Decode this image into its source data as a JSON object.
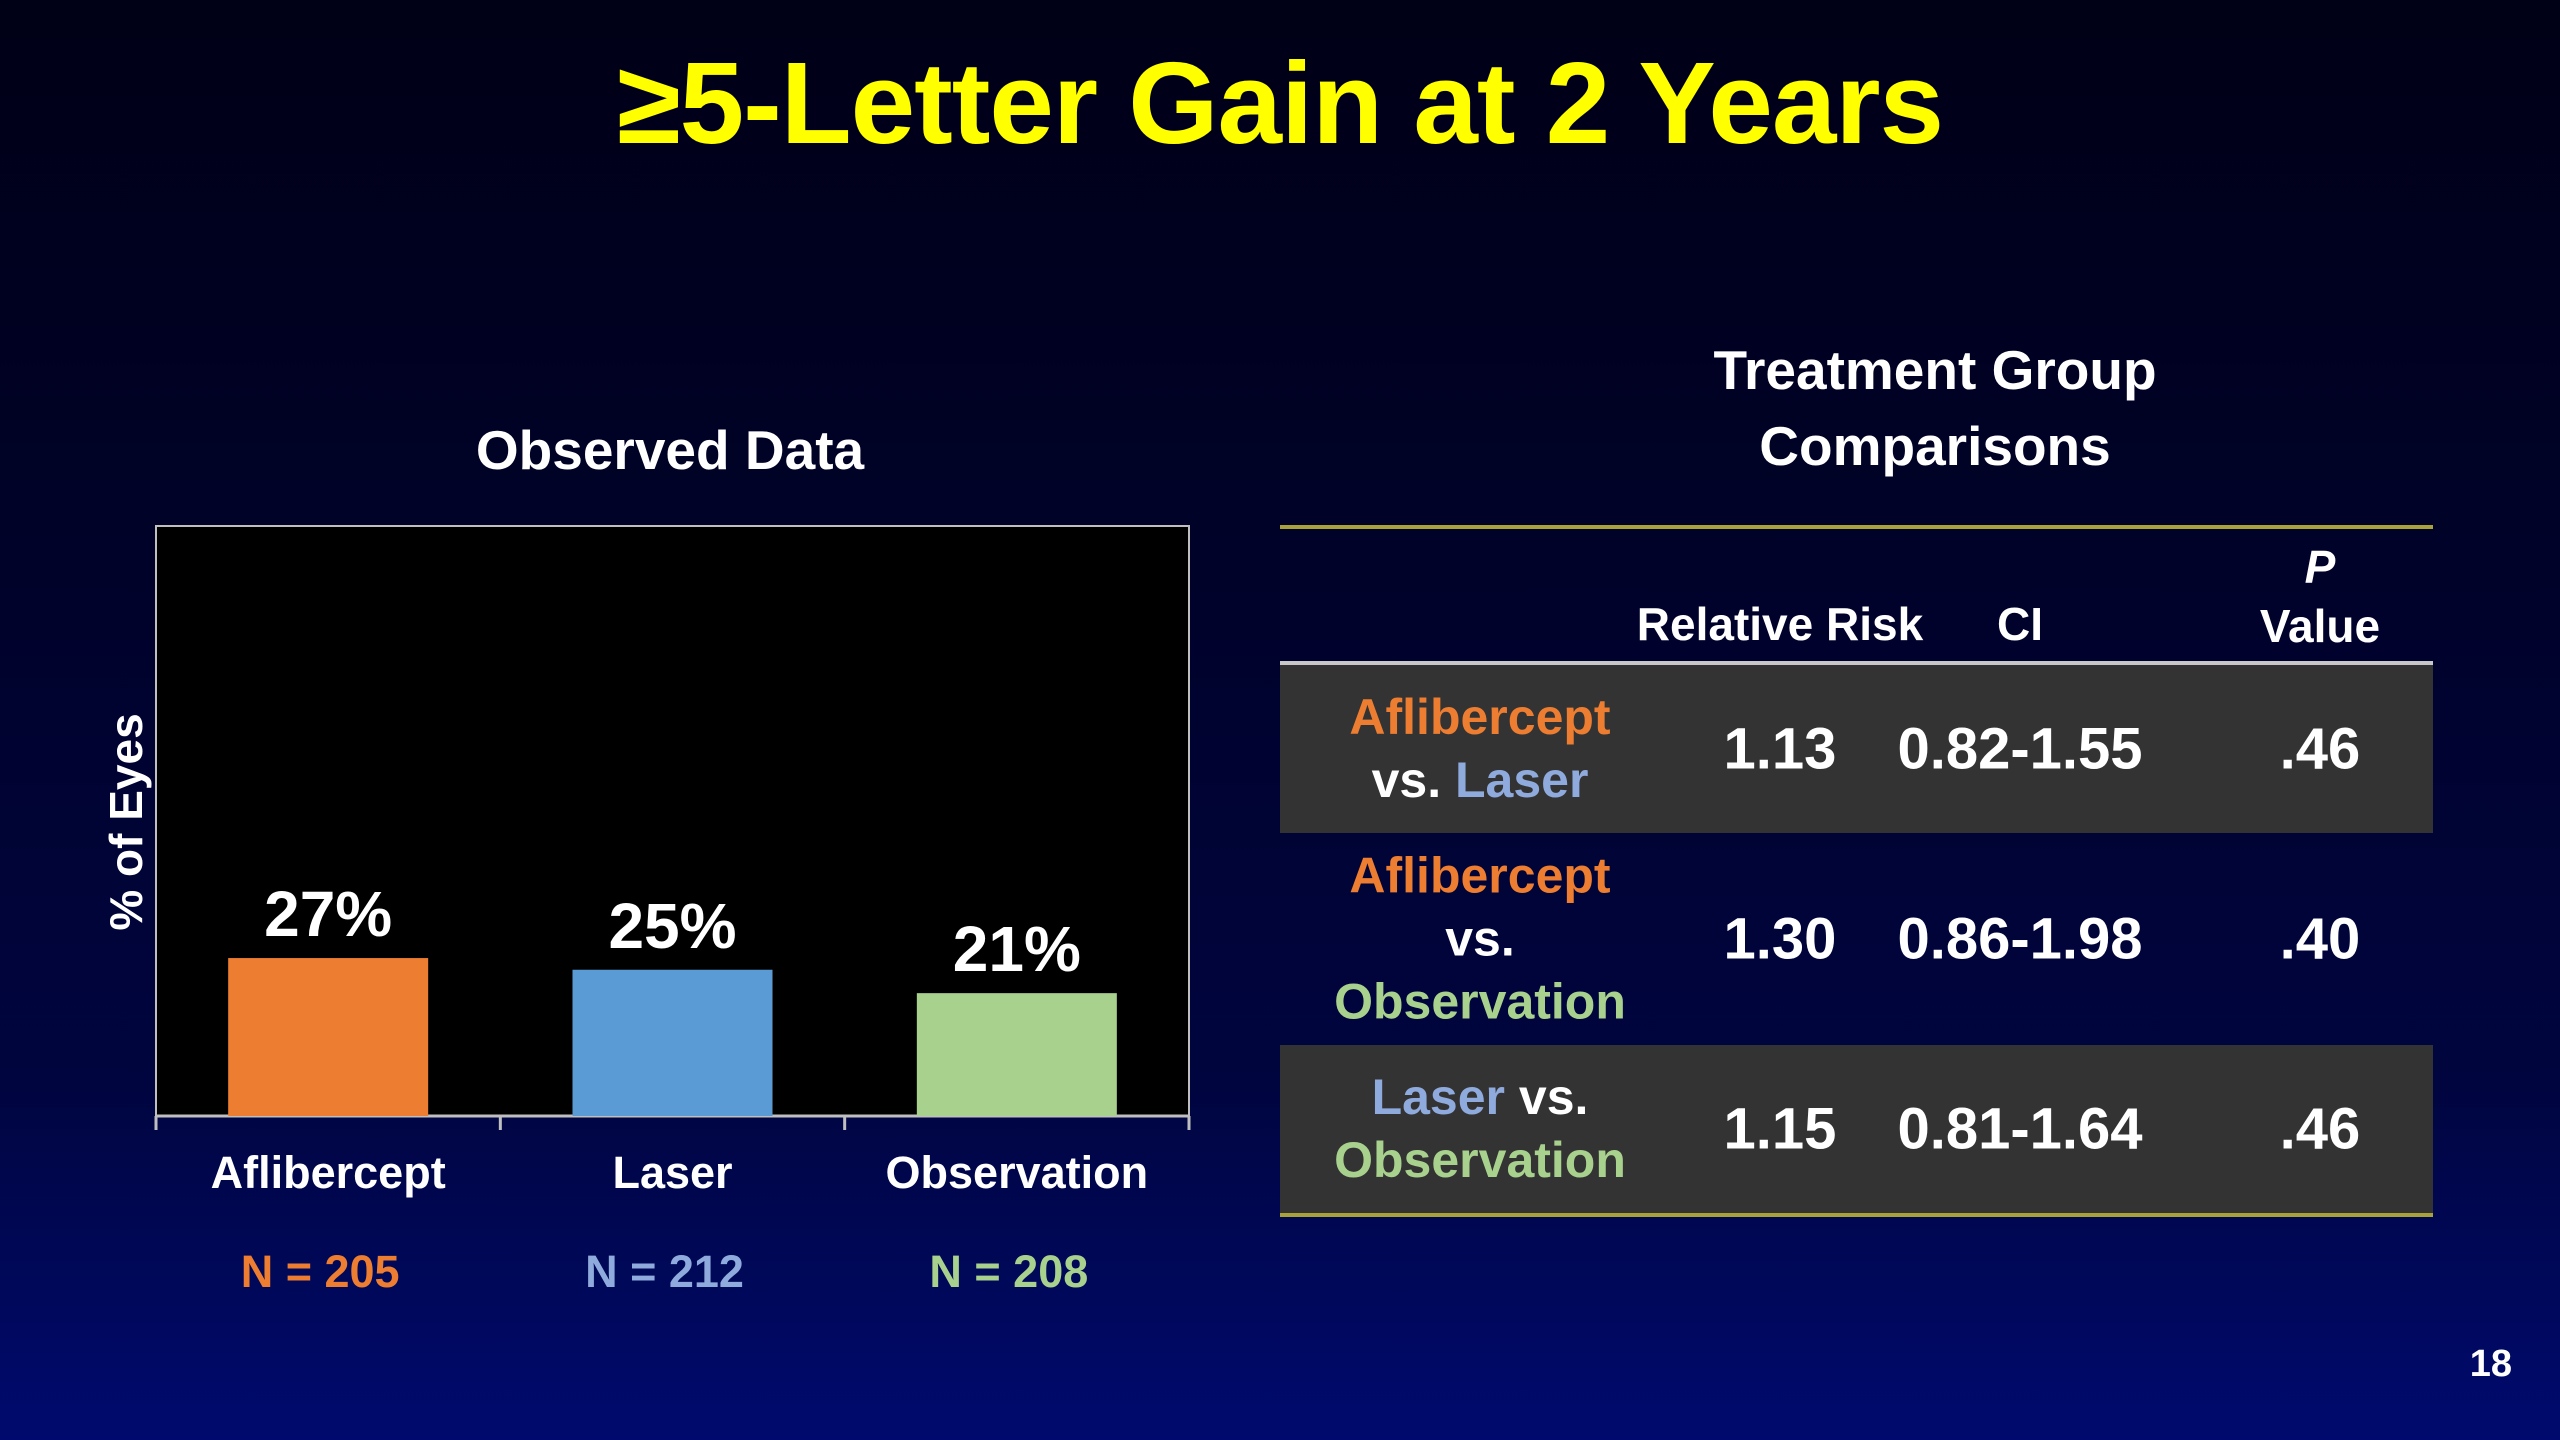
{
  "slide": {
    "title": "≥5-Letter Gain at 2 Years",
    "page_number": "18"
  },
  "colors": {
    "title": "#ffff00",
    "aflibercept": "#ec7d31",
    "laser": "#5b9bd5",
    "laser_text": "#8faadc",
    "observation": "#a9d18e",
    "table_rule": "#a9a23a",
    "row_shade": "#333333"
  },
  "chart_data": {
    "type": "bar",
    "title": "Observed Data",
    "ylabel": "% of Eyes",
    "xlabel": "",
    "categories": [
      "Aflibercept",
      "Laser",
      "Observation"
    ],
    "values": [
      27,
      25,
      21
    ],
    "data_labels": [
      "27%",
      "25%",
      "21%"
    ],
    "n_labels": [
      "N = 205",
      "N = 212",
      "N = 208"
    ],
    "ylim": [
      0,
      100
    ],
    "grid": false,
    "legend": "none"
  },
  "table": {
    "title_line1": "Treatment Group",
    "title_line2": "Comparisons",
    "headers": {
      "relative_risk": "Relative Risk",
      "ci": "CI",
      "p_line1": "P",
      "p_line2": "Value"
    },
    "rows": [
      {
        "comparison": [
          {
            "text": "Aflibercept",
            "group": "aflibercept",
            "newline": true
          },
          {
            "text": "vs. ",
            "group": "plain"
          },
          {
            "text": "Laser",
            "group": "laser"
          }
        ],
        "relative_risk": "1.13",
        "ci": "0.82-1.55",
        "p_value": ".46",
        "shaded": true
      },
      {
        "comparison": [
          {
            "text": "Aflibercept",
            "group": "aflibercept",
            "newline": true
          },
          {
            "text": "vs.",
            "group": "plain",
            "newline": true
          },
          {
            "text": "Observation",
            "group": "observation"
          }
        ],
        "relative_risk": "1.30",
        "ci": "0.86-1.98",
        "p_value": ".40",
        "shaded": false
      },
      {
        "comparison": [
          {
            "text": "Laser",
            "group": "laser"
          },
          {
            "text": " vs.",
            "group": "plain",
            "newline": true
          },
          {
            "text": "Observation",
            "group": "observation"
          }
        ],
        "relative_risk": "1.15",
        "ci": "0.81-1.64",
        "p_value": ".46",
        "shaded": true
      }
    ]
  }
}
